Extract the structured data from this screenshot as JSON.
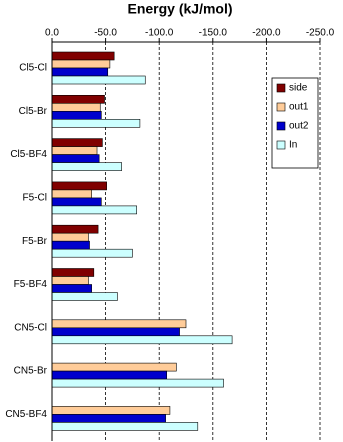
{
  "chart_data": {
    "type": "barh",
    "title": "Energy (kJ/mol)",
    "categories": [
      "Cl5-Cl",
      "Cl5-Br",
      "Cl5-BF4",
      "F5-Cl",
      "F5-Br",
      "F5-BF4",
      "CN5-Cl",
      "CN5-Br",
      "CN5-BF4"
    ],
    "series": [
      {
        "name": "side",
        "color": "#800000",
        "values": [
          -58,
          -49,
          -47,
          -51,
          -43,
          -39,
          null,
          null,
          null
        ]
      },
      {
        "name": "out1",
        "color": "#ffcc99",
        "values": [
          -54,
          -45,
          -42,
          -37,
          -34,
          -34,
          -125,
          -116,
          -110
        ]
      },
      {
        "name": "out2",
        "color": "#0000cc",
        "values": [
          -52,
          -46,
          -44,
          -46,
          -35,
          -37,
          -119,
          -107,
          -106
        ]
      },
      {
        "name": "In",
        "color": "#ccffff",
        "values": [
          -87,
          -82,
          -65,
          -79,
          -75,
          -61,
          -168,
          -160,
          -136
        ]
      }
    ],
    "xlim": [
      0,
      -250
    ],
    "xticks": [
      {
        "value": 0,
        "label": "0.0"
      },
      {
        "value": -50,
        "label": "-50.0"
      },
      {
        "value": -100,
        "label": "-100.0"
      },
      {
        "value": -150,
        "label": "-150.0"
      },
      {
        "value": -200,
        "label": "-200.0"
      },
      {
        "value": -250,
        "label": "-250.0"
      }
    ],
    "grid": true,
    "legend": "upper right"
  }
}
